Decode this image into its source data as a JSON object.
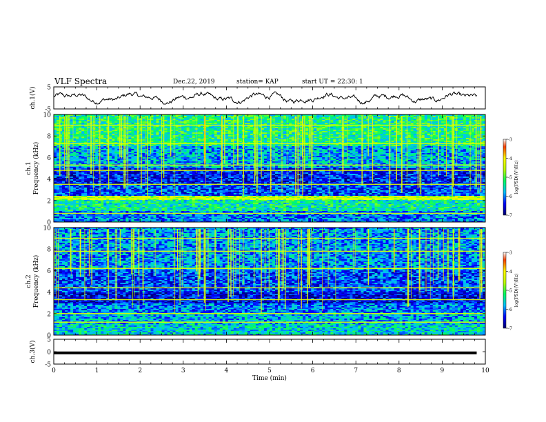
{
  "header": {
    "title": "VLF Spectra",
    "date": "Dec.22, 2019",
    "station": "station= KAP",
    "start": "start UT = 22:30: 1"
  },
  "chart_data": [
    {
      "type": "line",
      "name": "ch1-waveform",
      "ylabel": "ch.1(V)",
      "xlim": [
        0,
        10
      ],
      "ylim": [
        -5,
        5
      ],
      "yticks": [
        "5",
        "-5"
      ],
      "data_extent_x": [
        0,
        9.8
      ],
      "mean": 0,
      "amplitude": [
        -2.8,
        2.8
      ]
    },
    {
      "type": "heatmap",
      "name": "ch1-spectrogram",
      "ylabel": "ch.1 Frequency (kHz)",
      "xlim": [
        0,
        10
      ],
      "ylim": [
        0,
        10
      ],
      "yticks": [
        "0",
        "2",
        "4",
        "6",
        "8",
        "10"
      ],
      "colorbar": {
        "label": "log(PSD)(V²/Hz)",
        "range": [
          -7,
          -3
        ],
        "ticks": [
          "-3",
          "-4",
          "-5",
          "-6",
          "-7"
        ]
      },
      "bands_khz": [
        {
          "from": 0.0,
          "to": 1.0,
          "level": -6.0
        },
        {
          "from": 1.0,
          "to": 2.0,
          "level": -5.4
        },
        {
          "from": 2.0,
          "to": 2.5,
          "level": -4.5
        },
        {
          "from": 2.5,
          "to": 3.5,
          "level": -6.2
        },
        {
          "from": 3.5,
          "to": 5.0,
          "level": -6.4
        },
        {
          "from": 5.0,
          "to": 7.0,
          "level": -5.8
        },
        {
          "from": 7.0,
          "to": 10.0,
          "level": -5.3
        }
      ],
      "lines_khz": [
        0.8,
        2.2,
        3.5,
        4.8,
        5.3,
        7.3,
        9.0
      ]
    },
    {
      "type": "heatmap",
      "name": "ch2-spectrogram",
      "ylabel": "ch.2 Frequency (kHz)",
      "xlim": [
        0,
        10
      ],
      "ylim": [
        0,
        10
      ],
      "yticks": [
        "0",
        "2",
        "4",
        "6",
        "8",
        "10"
      ],
      "colorbar": {
        "label": "log(PSD)(V²/Hz)",
        "range": [
          -7,
          -3
        ],
        "ticks": [
          "-3",
          "-4",
          "-5",
          "-6",
          "-7"
        ]
      },
      "bands_khz": [
        {
          "from": 0.0,
          "to": 1.0,
          "level": -5.6
        },
        {
          "from": 1.0,
          "to": 2.0,
          "level": -5.8
        },
        {
          "from": 2.0,
          "to": 3.0,
          "level": -6.0
        },
        {
          "from": 3.0,
          "to": 4.0,
          "level": -6.5
        },
        {
          "from": 4.0,
          "to": 6.0,
          "level": -6.2
        },
        {
          "from": 6.0,
          "to": 10.0,
          "level": -5.9
        }
      ],
      "lines_khz": [
        1.2,
        2.0,
        3.3,
        4.4,
        6.2,
        7.8,
        9.0
      ]
    },
    {
      "type": "line",
      "name": "ch3-waveform",
      "ylabel": "ch.3(V)",
      "xlabel": "Time (min)",
      "xlim": [
        0,
        10
      ],
      "ylim": [
        -5,
        5
      ],
      "yticks": [
        "5",
        "0",
        "-5"
      ],
      "xticks": [
        "0",
        "1",
        "2",
        "3",
        "4",
        "5",
        "6",
        "7",
        "8",
        "9",
        "10"
      ],
      "constant_value": -0.5,
      "data_extent_x": [
        0,
        9.8
      ]
    }
  ]
}
